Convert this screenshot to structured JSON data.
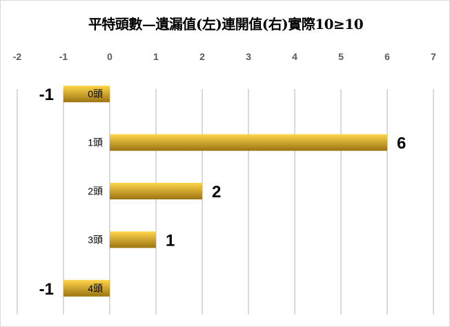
{
  "chart_data": {
    "type": "bar",
    "orientation": "horizontal",
    "title": "平特頭數—遺漏值(左)連開值(右)實際10≥10",
    "categories": [
      "0頭",
      "1頭",
      "2頭",
      "3頭",
      "4頭"
    ],
    "values": [
      -1,
      6,
      2,
      1,
      -1
    ],
    "xlim": [
      -2,
      7
    ],
    "xticks": [
      -2,
      -1,
      0,
      1,
      2,
      3,
      4,
      5,
      6,
      7
    ],
    "axis_position": "top",
    "grid": true,
    "legend": "none",
    "colors": {
      "bar_top": "#ffd54a",
      "bar_bottom": "#9c7412",
      "grid": "#d9d9d9",
      "tick": "#595959"
    }
  }
}
